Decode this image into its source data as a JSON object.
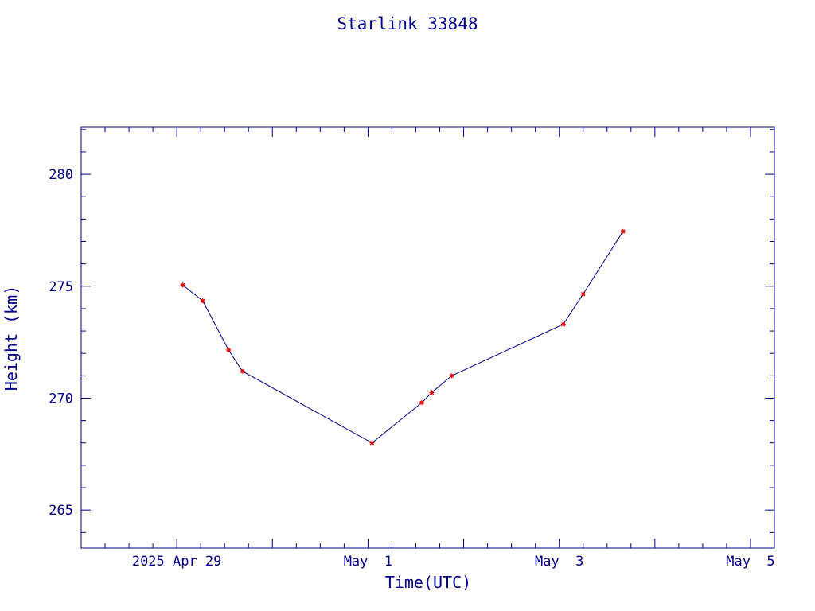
{
  "chart_data": {
    "type": "line",
    "title": "Starlink 33848",
    "xlabel": "Time(UTC)",
    "ylabel": "Height (km)",
    "x_ticks": [
      {
        "label": "2025 Apr 29",
        "value": "2025-04-29T00:00"
      },
      {
        "label": "May  1",
        "value": "2025-05-01T00:00"
      },
      {
        "label": "May  3",
        "value": "2025-05-03T00:00"
      },
      {
        "label": "May  5",
        "value": "2025-05-05T00:00"
      }
    ],
    "xlim": [
      "2025-04-28T00:00",
      "2025-05-05T06:00"
    ],
    "ylim": [
      263.3,
      282.1
    ],
    "y_ticks": [
      265,
      270,
      275,
      280
    ],
    "series": [
      {
        "values": [
          {
            "x": "2025-04-29T01:30",
            "y": 275.05
          },
          {
            "x": "2025-04-29T06:30",
            "y": 274.35
          },
          {
            "x": "2025-04-29T13:00",
            "y": 272.15
          },
          {
            "x": "2025-04-29T16:30",
            "y": 271.2
          },
          {
            "x": "2025-05-01T01:00",
            "y": 268.0
          },
          {
            "x": "2025-05-01T13:30",
            "y": 269.8
          },
          {
            "x": "2025-05-01T16:00",
            "y": 270.25
          },
          {
            "x": "2025-05-01T21:00",
            "y": 271.0
          },
          {
            "x": "2025-05-03T01:00",
            "y": 273.3
          },
          {
            "x": "2025-05-03T06:00",
            "y": 274.65
          },
          {
            "x": "2025-05-03T16:00",
            "y": 277.45
          }
        ]
      }
    ],
    "colors": {
      "axes": "#00008b",
      "line": "#00008b",
      "marker": "#e00000"
    },
    "grid": false,
    "legend": "none"
  }
}
